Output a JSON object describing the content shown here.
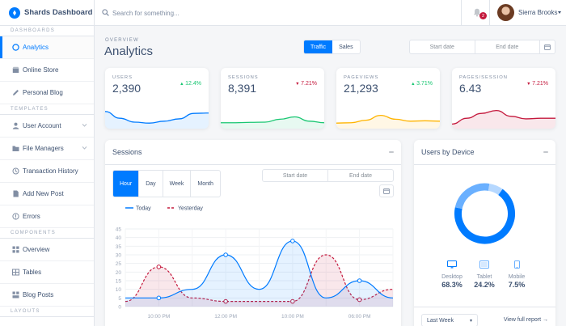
{
  "brand": {
    "title": "Shards Dashboard"
  },
  "sidebar": {
    "sections": [
      {
        "title": "DASHBOARDS",
        "items": [
          {
            "label": "Analytics",
            "icon": "analytics-icon",
            "active": true
          },
          {
            "label": "Online Store",
            "icon": "store-icon"
          },
          {
            "label": "Personal Blog",
            "icon": "pencil-icon"
          }
        ]
      },
      {
        "title": "TEMPLATES",
        "items": [
          {
            "label": "User Account",
            "icon": "person-icon",
            "chevron": true
          },
          {
            "label": "File Managers",
            "icon": "folder-icon",
            "chevron": true
          },
          {
            "label": "Transaction History",
            "icon": "history-icon"
          },
          {
            "label": "Add New Post",
            "icon": "note-icon"
          },
          {
            "label": "Errors",
            "icon": "error-icon"
          }
        ]
      },
      {
        "title": "COMPONENTS",
        "items": [
          {
            "label": "Overview",
            "icon": "grid-icon"
          },
          {
            "label": "Tables",
            "icon": "table-icon"
          },
          {
            "label": "Blog Posts",
            "icon": "posts-icon"
          }
        ]
      },
      {
        "title": "LAYOUTS",
        "items": []
      }
    ]
  },
  "topbar": {
    "search_placeholder": "Search for something...",
    "notifications_count": "2",
    "user_name": "Sierra Brooks"
  },
  "header": {
    "overview": "OVERVIEW",
    "title": "Analytics",
    "toggle": [
      "Traffic",
      "Sales"
    ],
    "start_date": "Start date",
    "end_date": "End date"
  },
  "stats": [
    {
      "label": "USERS",
      "value": "2,390",
      "delta": "12.4%",
      "dir": "up",
      "color": "#007bff",
      "fill": "rgba(0,123,255,0.10)",
      "spark": [
        0.8,
        0.45,
        0.25,
        0.2,
        0.3,
        0.42,
        0.7,
        0.72
      ]
    },
    {
      "label": "SESSIONS",
      "value": "8,391",
      "delta": "7.21%",
      "dir": "down",
      "color": "#17c671",
      "fill": "rgba(23,198,113,0.10)",
      "spark": [
        0.22,
        0.22,
        0.24,
        0.25,
        0.4,
        0.52,
        0.3,
        0.22
      ]
    },
    {
      "label": "PAGEVIEWS",
      "value": "21,293",
      "delta": "3.71%",
      "dir": "up",
      "color": "#ffb400",
      "fill": "rgba(255,180,0,0.10)",
      "spark": [
        0.2,
        0.22,
        0.35,
        0.6,
        0.4,
        0.3,
        0.32,
        0.3
      ]
    },
    {
      "label": "PAGES/SESSION",
      "value": "6.43",
      "delta": "7.21%",
      "dir": "down",
      "color": "#c4183c",
      "fill": "rgba(196,24,60,0.10)",
      "spark": [
        0.15,
        0.45,
        0.7,
        0.85,
        0.55,
        0.42,
        0.45,
        0.45
      ]
    }
  ],
  "sessions": {
    "title": "Sessions",
    "tabs": [
      "Hour",
      "Day",
      "Week",
      "Month"
    ],
    "start_date": "Start date",
    "end_date": "End date"
  },
  "chart_data": {
    "type": "line",
    "title": "Sessions",
    "x": [
      0,
      1,
      2,
      3,
      4,
      5,
      6,
      7,
      8
    ],
    "x_tick_labels": [
      "10:00 PM",
      "12:00 PM",
      "10:00 PM",
      "06:00 PM"
    ],
    "x_tick_positions": [
      1,
      3,
      5,
      7
    ],
    "ylim": [
      0,
      45
    ],
    "y_ticks": [
      0,
      5,
      10,
      15,
      20,
      25,
      30,
      35,
      40,
      45
    ],
    "series": [
      {
        "name": "Today",
        "color": "#007bff",
        "values": [
          5,
          5,
          10,
          30,
          10,
          38,
          5,
          15,
          5
        ]
      },
      {
        "name": "Yesterday",
        "color": "#c4183c",
        "values": [
          3,
          23,
          5,
          3,
          3,
          3,
          30,
          4,
          10
        ]
      }
    ],
    "legend": "top-left",
    "grid": true
  },
  "devices": {
    "title": "Users by Device",
    "items": [
      {
        "name": "Desktop",
        "value": "68.3%",
        "pct": 68.3,
        "color": "#007bff",
        "icon": "desktop-icon"
      },
      {
        "name": "Tablet",
        "value": "24.2%",
        "pct": 24.2,
        "color": "#6ab0ff",
        "icon": "tablet-icon"
      },
      {
        "name": "Mobile",
        "value": "7.5%",
        "pct": 7.5,
        "color": "#b6d8ff",
        "icon": "mobile-icon"
      }
    ],
    "select_value": "Last Week",
    "report_link": "View full report →"
  }
}
